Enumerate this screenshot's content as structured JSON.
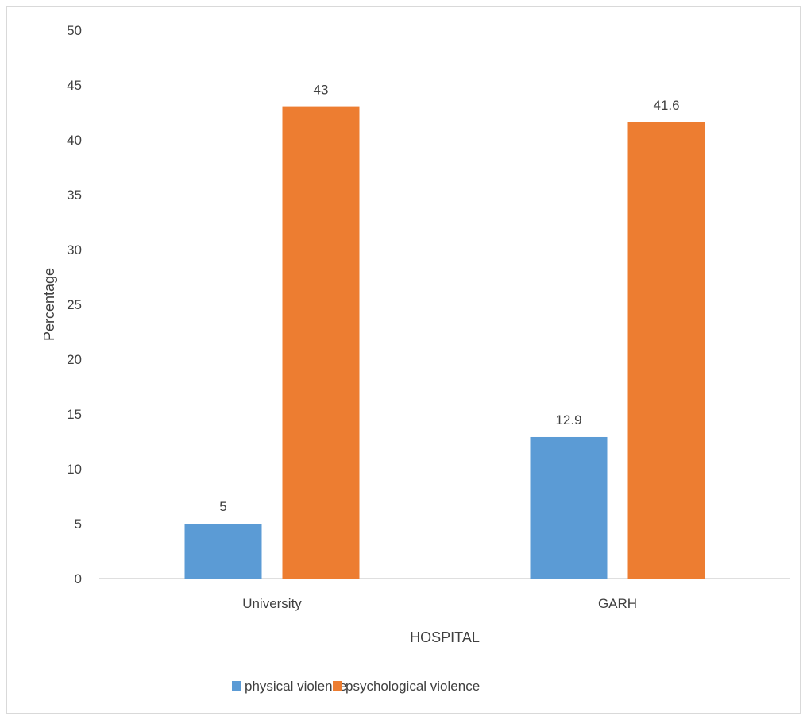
{
  "chart_data": {
    "type": "bar",
    "title": "",
    "xlabel": "HOSPITAL",
    "ylabel": "Percentage",
    "categories": [
      "University",
      "GARH"
    ],
    "series": [
      {
        "name": "physical violence",
        "values": [
          5,
          12.9
        ],
        "color": "#5b9bd5"
      },
      {
        "name": "psychological violence",
        "values": [
          43,
          41.6
        ],
        "color": "#ed7d31"
      }
    ],
    "ylim": [
      0,
      50
    ],
    "yticks": [
      0,
      5,
      10,
      15,
      20,
      25,
      30,
      35,
      40,
      45,
      50
    ],
    "grid": false,
    "legend_position": "bottom",
    "data_labels": true
  }
}
